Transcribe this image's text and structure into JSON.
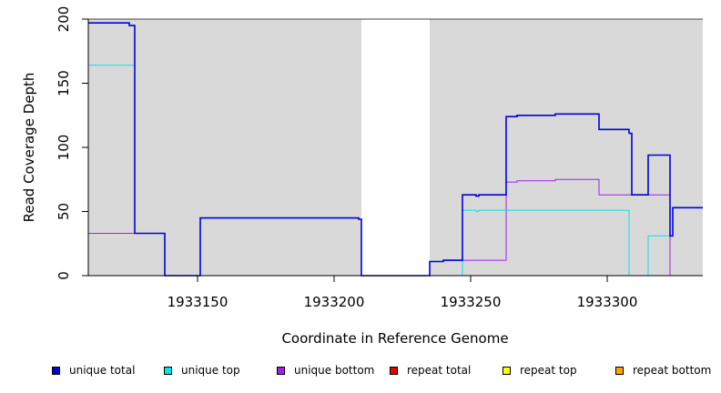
{
  "chart_data": {
    "type": "line",
    "title": "",
    "xlabel": "Coordinate in Reference Genome",
    "ylabel": "Read Coverage Depth",
    "xlim": [
      1933110,
      1933335
    ],
    "ylim": [
      0,
      200
    ],
    "x_ticks": [
      1933150,
      1933200,
      1933250,
      1933300
    ],
    "x_tick_labels": [
      "1933150",
      "1933200",
      "1933250",
      "1933300"
    ],
    "y_ticks": [
      0,
      50,
      100,
      150,
      200
    ],
    "y_tick_labels": [
      "0",
      "50",
      "100",
      "150",
      "200"
    ],
    "shaded_regions": [
      [
        1933110,
        1933210
      ],
      [
        1933235,
        1933335
      ]
    ],
    "shade_color": "#d9d9d9",
    "legend_position": "bottom",
    "series": [
      {
        "name": "unique total",
        "color": "#0000dd",
        "x": [
          1933110,
          1933125,
          1933126,
          1933127,
          1933138,
          1933151,
          1933209,
          1933210,
          1933235,
          1933240,
          1933247,
          1933252,
          1933253,
          1933263,
          1933267,
          1933281,
          1933297,
          1933308,
          1933309,
          1933315,
          1933323,
          1933324,
          1933335
        ],
        "y": [
          197,
          195,
          195,
          33,
          0,
          45,
          44,
          0,
          11,
          12,
          63,
          62,
          63,
          124,
          125,
          126,
          114,
          111,
          63,
          94,
          31,
          53,
          53
        ]
      },
      {
        "name": "unique top",
        "color": "#00e6e6",
        "x": [
          1933110,
          1933126,
          1933127,
          1933138,
          1933151,
          1933209,
          1933210,
          1933247,
          1933252,
          1933253,
          1933307,
          1933308,
          1933315,
          1933323,
          1933324,
          1933335
        ],
        "y": [
          164,
          164,
          33,
          0,
          45,
          44,
          0,
          51,
          50,
          51,
          51,
          0,
          31,
          31,
          53,
          53
        ]
      },
      {
        "name": "unique bottom",
        "color": "#a020f0",
        "x": [
          1933110,
          1933127,
          1933138,
          1933235,
          1933240,
          1933263,
          1933267,
          1933281,
          1933297,
          1933323,
          1933335
        ],
        "y": [
          33,
          33,
          0,
          11,
          12,
          73,
          74,
          75,
          63,
          0,
          0
        ]
      },
      {
        "name": "repeat total",
        "color": "#ee0000",
        "x": [
          1933110,
          1933335
        ],
        "y": [
          0,
          0
        ]
      },
      {
        "name": "repeat top",
        "color": "#ffff00",
        "x": [
          1933110,
          1933335
        ],
        "y": [
          0,
          0
        ]
      },
      {
        "name": "repeat bottom",
        "color": "#ffa500",
        "x": [
          1933110,
          1933335
        ],
        "y": [
          0,
          0
        ]
      }
    ]
  }
}
